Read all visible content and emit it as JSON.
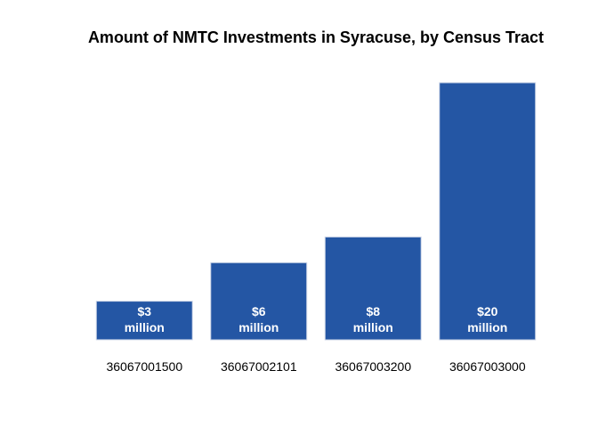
{
  "chart_data": {
    "type": "bar",
    "title": "Amount of NMTC Investments in Syracuse, by Census Tract",
    "xlabel": "",
    "ylabel": "",
    "categories": [
      "36067001500",
      "36067002101",
      "36067003200",
      "36067003000"
    ],
    "values": [
      3,
      6,
      8,
      20
    ],
    "value_unit": "million",
    "data_labels": [
      [
        "$3",
        "million"
      ],
      [
        "$6",
        "million"
      ],
      [
        "$8",
        "million"
      ],
      [
        "$20",
        "million"
      ]
    ],
    "ylim": [
      0,
      20
    ],
    "grid": false,
    "legend": "none",
    "bar_color": "#2456A4",
    "bar_edge_color": "#c9d3e6"
  }
}
